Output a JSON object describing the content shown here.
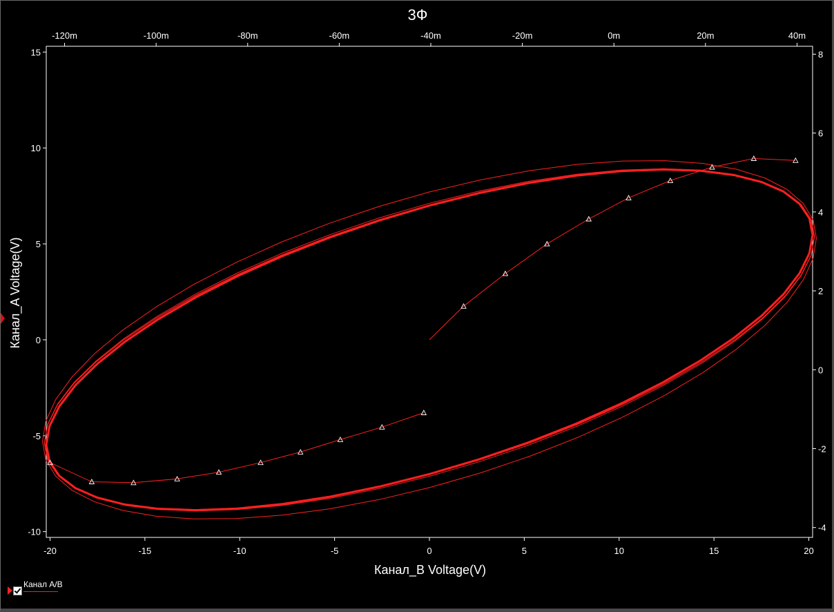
{
  "chart_data": {
    "type": "line",
    "title": "3Ф",
    "xlabel": "Канал_B Voltage(V)",
    "ylabel": "Канал_A Voltage(V)",
    "xlim": [
      -20.2,
      20.2
    ],
    "ylim": [
      -10.3,
      15.3
    ],
    "x_ticks": [
      -20,
      -15,
      -10,
      -5,
      0,
      5,
      10,
      15,
      20
    ],
    "y_ticks": [
      -10,
      -5,
      0,
      5,
      10,
      15
    ],
    "top_axis": {
      "range": [
        -124,
        43.4
      ],
      "ticks": [
        -120,
        -100,
        -80,
        -60,
        -40,
        -20,
        0,
        20,
        40
      ],
      "tick_labels": [
        "-120m",
        "-100m",
        "-80m",
        "-60m",
        "-40m",
        "-20m",
        "0m",
        "20m",
        "40m"
      ]
    },
    "right_axis": {
      "range": [
        -4.25,
        8.2
      ],
      "ticks": [
        -4,
        -2,
        0,
        2,
        4,
        6,
        8
      ],
      "tick_labels": [
        "-4",
        "-2",
        "0",
        "2",
        "4",
        "6",
        "8"
      ]
    },
    "grid": false,
    "legend_position": "bottom-left",
    "series": [
      {
        "name": "Канал A/B",
        "color": "#ff2020",
        "loops": [
          {
            "rx": 20.2,
            "ry": 8.88,
            "phase_deg": 52.0,
            "stroke_width": 3.0
          },
          {
            "rx": 20.3,
            "ry": 8.85,
            "phase_deg": 52.5,
            "stroke_width": 1.2
          },
          {
            "rx": 20.3,
            "ry": 8.92,
            "phase_deg": 52.9,
            "stroke_width": 1.0
          },
          {
            "rx": 20.4,
            "ry": 9.35,
            "phase_deg": 55.5,
            "stroke_width": 1.0
          }
        ],
        "transient_start": [
          {
            "x": 0.0,
            "y": 0.0
          },
          {
            "x": 1.8,
            "y": 1.75
          },
          {
            "x": 4.0,
            "y": 3.45
          },
          {
            "x": 6.2,
            "y": 5.0
          },
          {
            "x": 8.4,
            "y": 6.3
          },
          {
            "x": 10.5,
            "y": 7.4
          },
          {
            "x": 12.7,
            "y": 8.3
          },
          {
            "x": 14.9,
            "y": 9.0
          },
          {
            "x": 17.1,
            "y": 9.45
          },
          {
            "x": 19.3,
            "y": 9.35
          }
        ],
        "transient_end": [
          {
            "x": -20.0,
            "y": -6.4
          },
          {
            "x": -17.8,
            "y": -7.4
          },
          {
            "x": -15.6,
            "y": -7.45
          },
          {
            "x": -13.3,
            "y": -7.25
          },
          {
            "x": -11.1,
            "y": -6.9
          },
          {
            "x": -8.9,
            "y": -6.4
          },
          {
            "x": -6.8,
            "y": -5.85
          },
          {
            "x": -4.7,
            "y": -5.2
          },
          {
            "x": -2.5,
            "y": -4.55
          },
          {
            "x": -0.3,
            "y": -3.8
          }
        ]
      }
    ]
  }
}
